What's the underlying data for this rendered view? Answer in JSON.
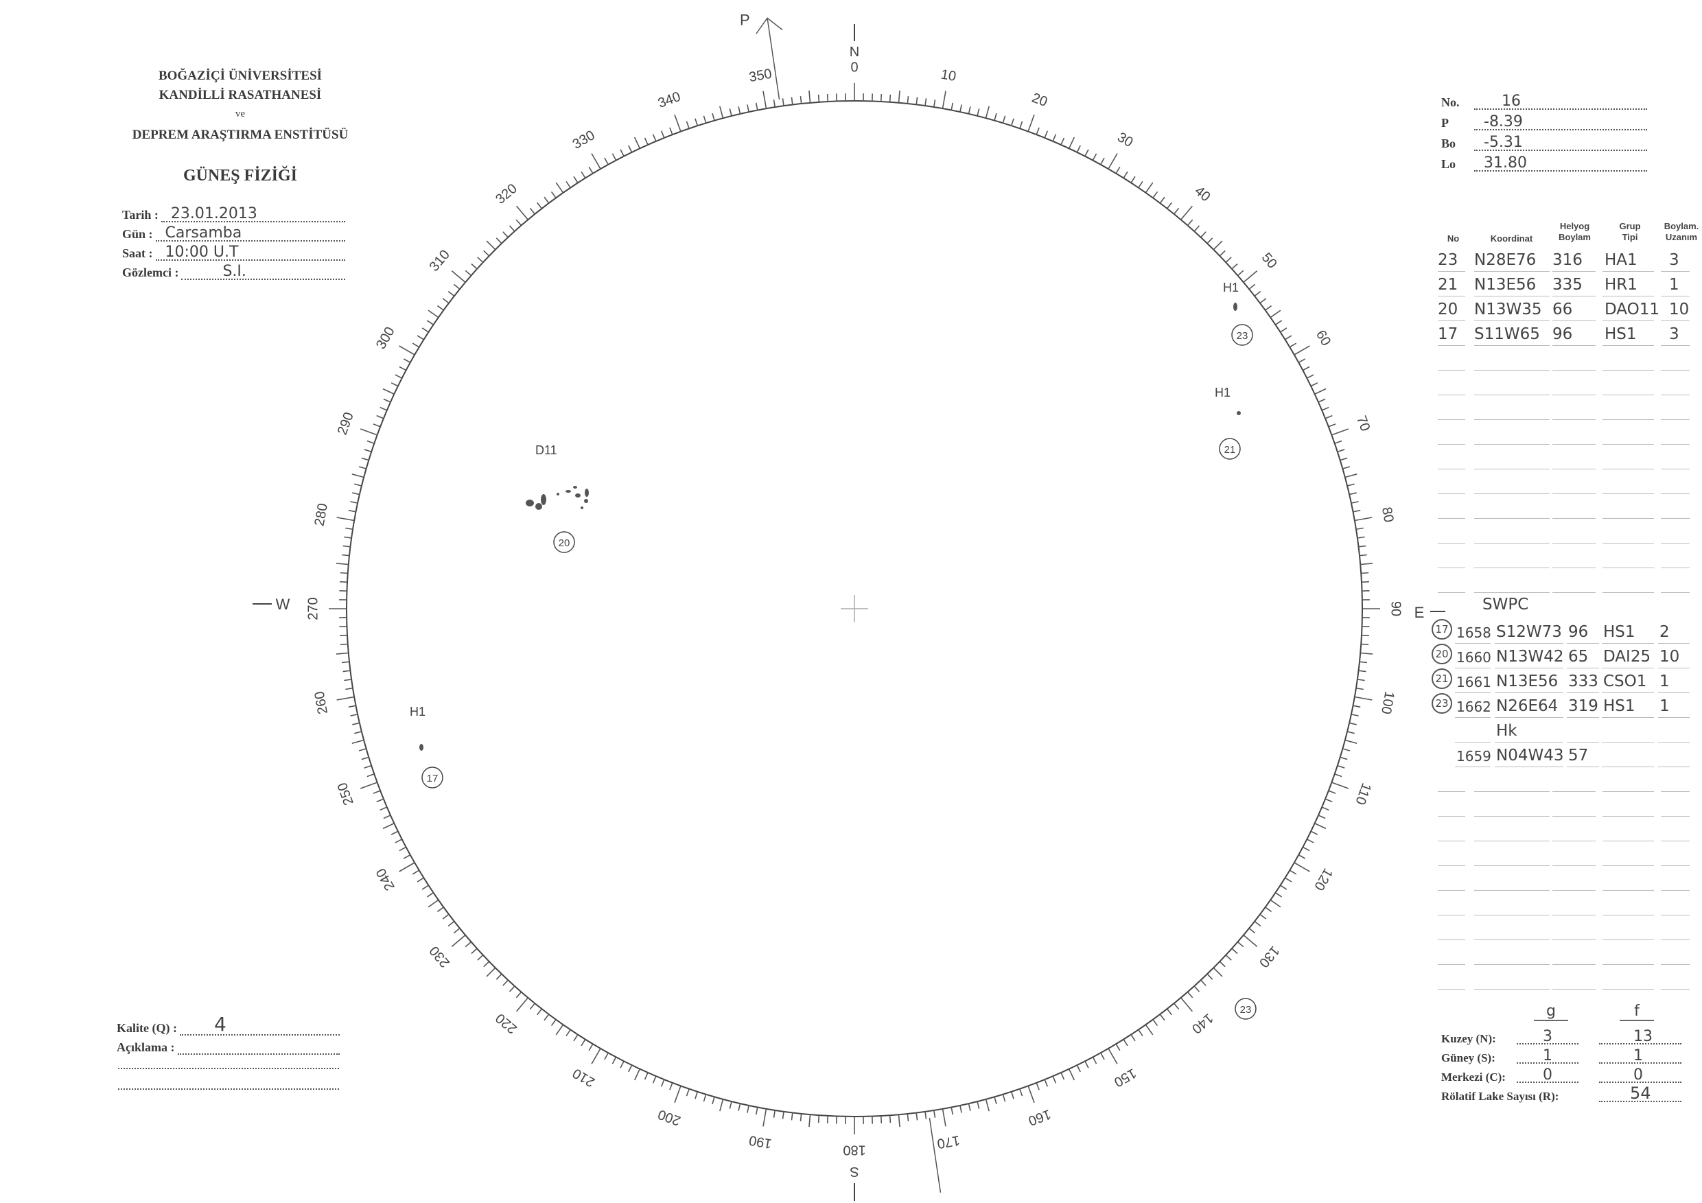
{
  "header": {
    "institution": [
      "BOĞAZİÇİ ÜNİVERSİTESİ",
      "KANDİLLİ RASATHANESİ",
      "ve",
      "DEPREM ARAŞTIRMA ENSTİTÜSÜ"
    ],
    "title": "GÜNEŞ FİZİĞİ"
  },
  "observation": [
    {
      "label": "Tarih :",
      "value": "23.01.2013"
    },
    {
      "label": "Gün :",
      "value": "Carsamba"
    },
    {
      "label": "Saat :",
      "value": "10:00 U.T"
    },
    {
      "label": "Gözlemci :",
      "value": "S.I."
    }
  ],
  "quality": {
    "kalite_label": "Kalite (Q) :",
    "kalite_value": "4",
    "aciklama_label": "Açıklama :",
    "aciklama_value": ""
  },
  "ephemeris": [
    {
      "label": "No.",
      "value": "16"
    },
    {
      "label": "P",
      "value": "-8.39"
    },
    {
      "label": "Bo",
      "value": "-5.31"
    },
    {
      "label": "Lo",
      "value": "31.80"
    }
  ],
  "groups_table": {
    "headers": [
      "No",
      "Koordinat",
      "Helyog\nBoylam",
      "Grup\nTipi",
      "Boylam.\nUzanım"
    ],
    "rows": [
      [
        "23",
        "N28E76",
        "316",
        "HA1",
        "3"
      ],
      [
        "21",
        "N13E56",
        "335",
        "HR1",
        "1"
      ],
      [
        "20",
        "N13W35",
        "66",
        "DAO11",
        "10"
      ],
      [
        "17",
        "S11W65",
        "96",
        "HS1",
        "3"
      ]
    ]
  },
  "swpc": {
    "title": "SWPC",
    "rows": [
      [
        "17",
        "1658",
        "S12W73",
        "96",
        "HS1",
        "2"
      ],
      [
        "20",
        "1660",
        "N13W42",
        "65",
        "DAI25",
        "10"
      ],
      [
        "21",
        "1661",
        "N13E56",
        "333",
        "CSO1",
        "1"
      ],
      [
        "23",
        "1662",
        "N26E64",
        "319",
        "HS1",
        "1"
      ],
      [
        "",
        "",
        "Hk",
        "",
        "",
        ""
      ],
      [
        "",
        "1659",
        "N04W43",
        "57",
        "",
        ""
      ]
    ]
  },
  "counts": {
    "col_headers": [
      "g",
      "f"
    ],
    "rows": [
      {
        "label": "Kuzey (N):",
        "g": "3",
        "f": "13"
      },
      {
        "label": "Güney (S):",
        "g": "1",
        "f": "1"
      },
      {
        "label": "Merkezi (C):",
        "g": "0",
        "f": "0"
      }
    ],
    "r_label": "Rölatif Lake Sayısı (R):",
    "r_value": "54"
  },
  "disk": {
    "directions": {
      "north": "N",
      "south": "S",
      "east": "E",
      "west": "W",
      "p_axis": "P"
    },
    "p_angle_deg": -8.39,
    "scale_labels": [
      "0",
      "10",
      "20",
      "30",
      "40",
      "50",
      "60",
      "70",
      "80",
      "90",
      "100",
      "110",
      "120",
      "130",
      "140",
      "150",
      "160",
      "170",
      "180",
      "190",
      "200",
      "210",
      "220",
      "230",
      "240",
      "250",
      "260",
      "270",
      "280",
      "290",
      "300",
      "310",
      "320",
      "330",
      "340",
      "350"
    ],
    "annotations": [
      {
        "group": "23",
        "type": "H1"
      },
      {
        "group": "21",
        "type": "H1"
      },
      {
        "group": "20",
        "type": "D11"
      },
      {
        "group": "17",
        "type": "H1"
      },
      {
        "group": "23",
        "type": ""
      }
    ],
    "ink_color": "#444444"
  }
}
